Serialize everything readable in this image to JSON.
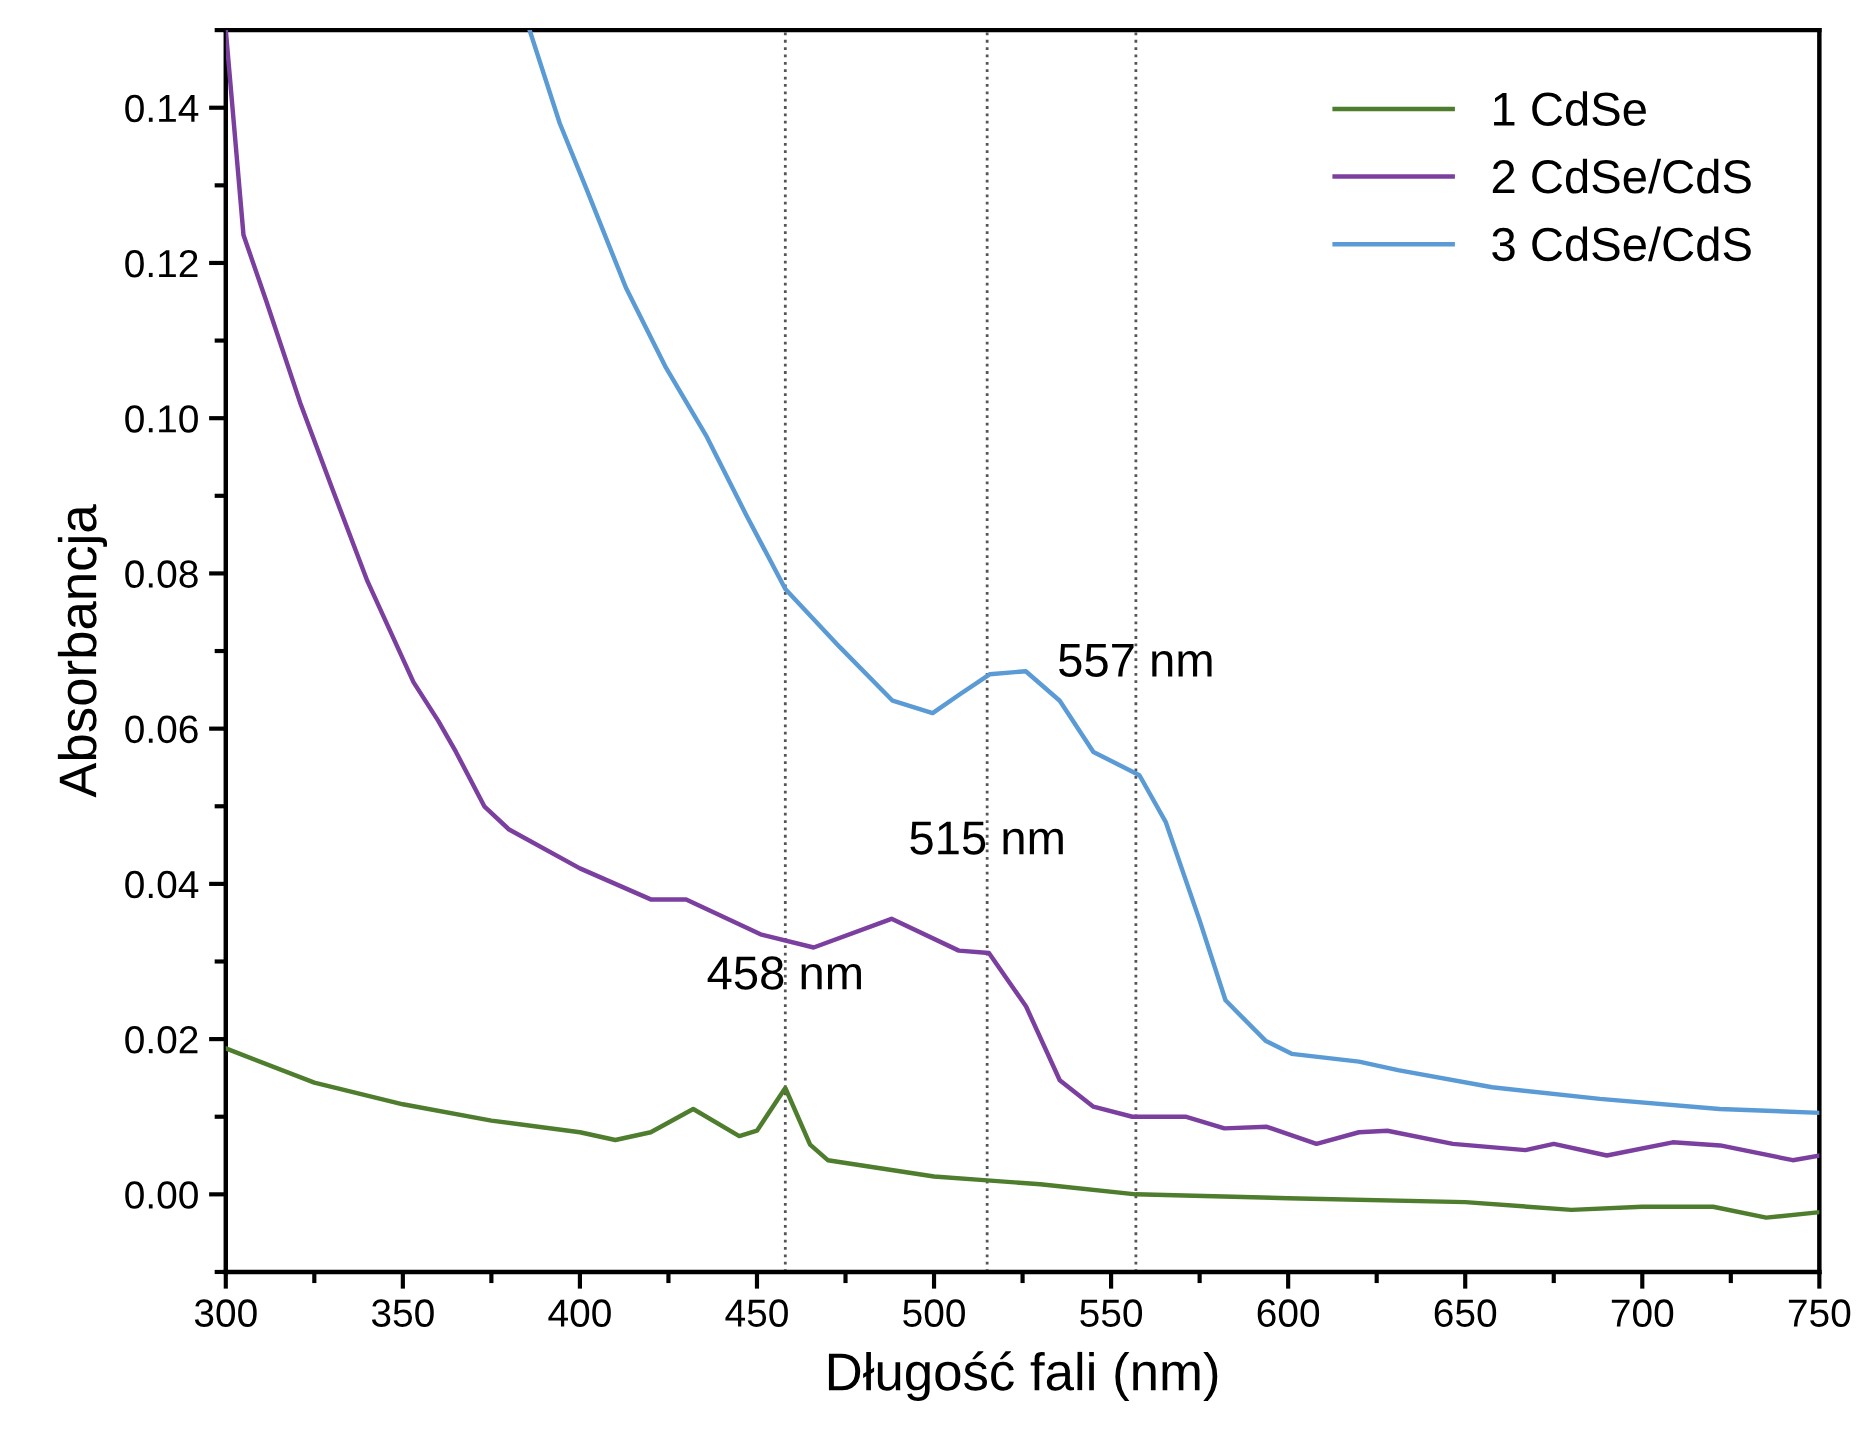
{
  "chart_data": {
    "type": "line",
    "xlabel": "Długość fali (nm)",
    "ylabel": "Absorbancja",
    "xlim": [
      300,
      750
    ],
    "ylim": [
      -0.01,
      0.15
    ],
    "xticks": [
      300,
      350,
      400,
      450,
      500,
      550,
      600,
      650,
      700,
      750
    ],
    "yticks": [
      {
        "value": 0,
        "label": "0.00"
      },
      {
        "value": 0.02,
        "label": "0.02"
      },
      {
        "value": 0.04,
        "label": "0.04"
      },
      {
        "value": 0.06,
        "label": "0.06"
      },
      {
        "value": 0.08,
        "label": "0.08"
      },
      {
        "value": 0.1,
        "label": "0.10"
      },
      {
        "value": 0.12,
        "label": "0.12"
      },
      {
        "value": 0.14,
        "label": "0.14"
      }
    ],
    "grid": false,
    "legend": "top right",
    "marker": "none",
    "line_style": "solid",
    "ref_lines": [
      {
        "axis": "x",
        "value": 458,
        "color": "#555555",
        "line_style": "dotted"
      },
      {
        "axis": "x",
        "value": 515,
        "color": "#555555",
        "line_style": "dotted"
      },
      {
        "axis": "x",
        "value": 557,
        "color": "#555555",
        "line_style": "dotted"
      }
    ],
    "annotations": [
      {
        "text": "458 nm",
        "x": 458,
        "y": 0.0137
      },
      {
        "text": "515 nm",
        "x": 515,
        "y": 0.0311
      },
      {
        "text": "557 nm",
        "x": 557,
        "y": 0.054
      }
    ],
    "series": [
      {
        "name": "1 CdSe",
        "color": "#4e7d2e",
        "x": [
          300,
          325,
          350,
          375,
          400,
          410,
          420,
          432,
          445,
          450,
          458,
          465,
          470,
          500,
          515,
          530,
          557,
          600,
          650,
          680,
          700,
          720,
          735,
          750
        ],
        "values": [
          0.0188,
          0.0144,
          0.0116,
          0.0095,
          0.008,
          0.007,
          0.008,
          0.011,
          0.0075,
          0.0082,
          0.0137,
          0.0064,
          0.0044,
          0.0023,
          0.0018,
          0.0013,
          0.0,
          -0.0005,
          -0.001,
          -0.002,
          -0.0016,
          -0.0016,
          -0.003,
          -0.0023
        ]
      },
      {
        "name": "2 CdSe/CdS",
        "color": "#7b3fa0",
        "x": [
          300,
          305,
          311.5,
          321,
          330,
          340,
          353,
          360,
          365,
          373,
          380,
          400,
          420,
          430,
          451,
          466,
          488,
          507,
          515.5,
          526,
          535.5,
          545,
          556,
          571,
          582,
          594,
          608,
          620,
          628,
          646.5,
          667,
          675,
          690,
          708.6,
          722,
          742.5,
          750
        ],
        "values": [
          0.15,
          0.1236,
          0.115,
          0.102,
          0.091,
          0.079,
          0.066,
          0.061,
          0.057,
          0.05,
          0.047,
          0.042,
          0.038,
          0.038,
          0.0335,
          0.0318,
          0.0355,
          0.0314,
          0.0311,
          0.0242,
          0.0147,
          0.0113,
          0.01,
          0.01,
          0.0085,
          0.0087,
          0.0065,
          0.008,
          0.0082,
          0.0065,
          0.0057,
          0.0065,
          0.005,
          0.0067,
          0.0063,
          0.0044,
          0.005
        ]
      },
      {
        "name": "3 CdSe/CdS",
        "color": "#5b9bd5",
        "x": [
          385.8,
          394.3,
          401.7,
          413,
          424.3,
          435.6,
          447,
          458,
          473.4,
          488.3,
          499.6,
          507.2,
          515.7,
          525.9,
          535.5,
          545,
          558,
          565.4,
          575,
          582.3,
          593.6,
          601,
          620,
          631,
          657.6,
          688,
          721.8,
          750
        ],
        "values": [
          0.15,
          0.138,
          0.1297,
          0.1168,
          0.1065,
          0.0978,
          0.0875,
          0.078,
          0.0705,
          0.0636,
          0.062,
          0.0644,
          0.067,
          0.0674,
          0.0636,
          0.057,
          0.054,
          0.048,
          0.0353,
          0.025,
          0.0198,
          0.0181,
          0.0171,
          0.016,
          0.0138,
          0.0123,
          0.011,
          0.0105
        ]
      }
    ]
  }
}
